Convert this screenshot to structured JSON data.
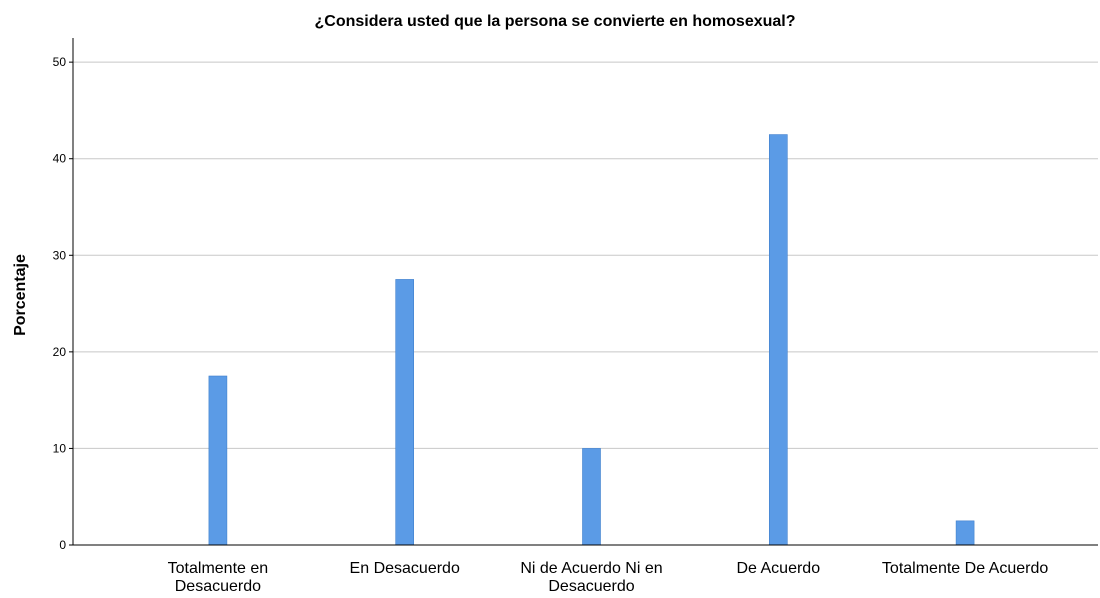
{
  "chart_data": {
    "type": "bar",
    "title": "¿Considera usted que la persona se convierte en homosexual?",
    "y_label": "Porcentaje",
    "categories": [
      "Totalmente en Desacuerdo",
      "En Desacuerdo",
      "Ni de Acuerdo Ni en Desacuerdo",
      "De Acuerdo",
      "Totalmente De Acuerdo"
    ],
    "values": [
      17.5,
      27.5,
      10,
      42.5,
      2.5
    ],
    "color": "#5b9be6",
    "ylim": [
      0,
      52.5
    ],
    "yticks": [
      0,
      10,
      20,
      30,
      40,
      50
    ],
    "grid": true
  }
}
